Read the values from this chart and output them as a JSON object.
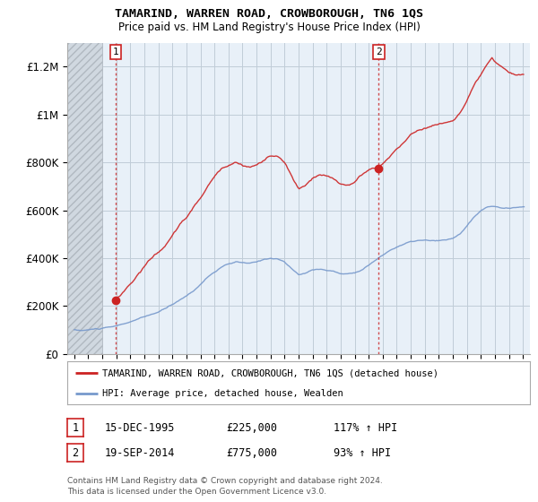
{
  "title": "TAMARIND, WARREN ROAD, CROWBOROUGH, TN6 1QS",
  "subtitle": "Price paid vs. HM Land Registry's House Price Index (HPI)",
  "hpi_label": "HPI: Average price, detached house, Wealden",
  "property_label": "TAMARIND, WARREN ROAD, CROWBOROUGH, TN6 1QS (detached house)",
  "sale1_date": "15-DEC-1995",
  "sale1_price": 225000,
  "sale1_hpi": "117% ↑ HPI",
  "sale2_date": "19-SEP-2014",
  "sale2_price": 775000,
  "sale2_hpi": "93% ↑ HPI",
  "annotation1": "1",
  "annotation2": "2",
  "footer": "Contains HM Land Registry data © Crown copyright and database right 2024.\nThis data is licensed under the Open Government Licence v3.0.",
  "property_color": "#cc2222",
  "hpi_color": "#7799cc",
  "chart_bg": "#e8f0f8",
  "hatch_color": "#d0d8e0",
  "grid_color": "#c0ccd8",
  "ylim": [
    0,
    1300000
  ],
  "yticks": [
    0,
    200000,
    400000,
    600000,
    800000,
    1000000,
    1200000
  ],
  "ytick_labels": [
    "£0",
    "£200K",
    "£400K",
    "£600K",
    "£800K",
    "£1M",
    "£1.2M"
  ],
  "sale1_x": 1995.96,
  "sale2_x": 2014.72,
  "xlim_left": 1992.5,
  "xlim_right": 2025.5,
  "hatch_end_x": 1995.0
}
